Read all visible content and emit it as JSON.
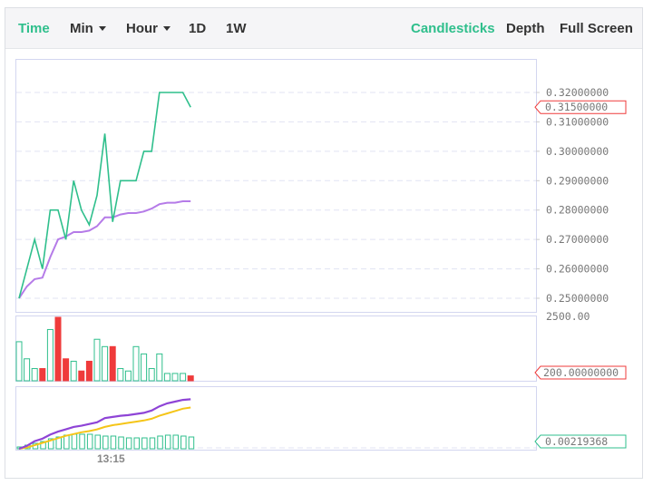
{
  "toolbar": {
    "time": "Time",
    "min": "Min",
    "hour": "Hour",
    "d1": "1D",
    "w1": "1W",
    "candlesticks": "Candlesticks",
    "depth": "Depth",
    "fullscreen": "Full Screen"
  },
  "colors": {
    "up": "#2fbf8c",
    "down": "#ef3b3b",
    "ma": "#b57be8",
    "line2": "#8e44d6",
    "line3": "#f5c518",
    "accent": "#2fbf8c"
  },
  "chart_data": [
    {
      "type": "line",
      "name": "price",
      "y_ticks": [
        "0.32000000",
        "0.31000000",
        "0.30000000",
        "0.29000000",
        "0.28000000",
        "0.27000000",
        "0.26000000",
        "0.25000000"
      ],
      "ylim": [
        0.25,
        0.32
      ],
      "current_value": "0.31500000",
      "series": [
        {
          "values": [
            0.25,
            0.26,
            0.27,
            0.26,
            0.28,
            0.28,
            0.27,
            0.29,
            0.28,
            0.275,
            0.285,
            0.306,
            0.276,
            0.29,
            0.29,
            0.29,
            0.3,
            0.3,
            0.32,
            0.32,
            0.32,
            0.32,
            0.315
          ]
        },
        {
          "values": [
            0.25,
            0.254,
            0.2565,
            0.257,
            0.264,
            0.27,
            0.271,
            0.2725,
            0.2725,
            0.273,
            0.2745,
            0.2775,
            0.2775,
            0.2785,
            0.279,
            0.279,
            0.2795,
            0.2805,
            0.282,
            0.2825,
            0.2825,
            0.283,
            0.283
          ]
        }
      ]
    },
    {
      "type": "bar",
      "name": "volume",
      "y_ticks": [
        "2500.00"
      ],
      "current_value": "200.00000000",
      "values": [
        1600,
        900,
        500,
        500,
        2100,
        2600,
        900,
        800,
        400,
        800,
        1700,
        1400,
        1400,
        500,
        400,
        1400,
        1100,
        500,
        1100,
        300,
        300,
        300,
        200
      ],
      "up": [
        true,
        true,
        true,
        false,
        true,
        false,
        false,
        true,
        false,
        false,
        true,
        true,
        false,
        true,
        true,
        true,
        true,
        true,
        true,
        true,
        true,
        true,
        false
      ]
    },
    {
      "type": "line",
      "name": "indicator",
      "x_ticks": [
        "13:15"
      ],
      "current_value": "0.00219368",
      "series": [
        {
          "values": [
            0,
            0.05,
            0.13,
            0.17,
            0.24,
            0.29,
            0.33,
            0.37,
            0.39,
            0.42,
            0.45,
            0.52,
            0.54,
            0.56,
            0.57,
            0.59,
            0.61,
            0.65,
            0.72,
            0.77,
            0.8,
            0.83,
            0.84
          ]
        },
        {
          "values": [
            0,
            0.02,
            0.06,
            0.1,
            0.14,
            0.18,
            0.22,
            0.25,
            0.28,
            0.3,
            0.33,
            0.37,
            0.4,
            0.42,
            0.44,
            0.46,
            0.48,
            0.51,
            0.56,
            0.6,
            0.64,
            0.68,
            0.7
          ]
        }
      ],
      "bars": [
        2,
        4,
        6,
        8,
        11,
        13,
        15,
        16,
        16,
        16,
        15,
        14,
        14,
        13,
        12,
        12,
        12,
        12,
        14,
        15,
        15,
        14,
        13
      ]
    }
  ]
}
